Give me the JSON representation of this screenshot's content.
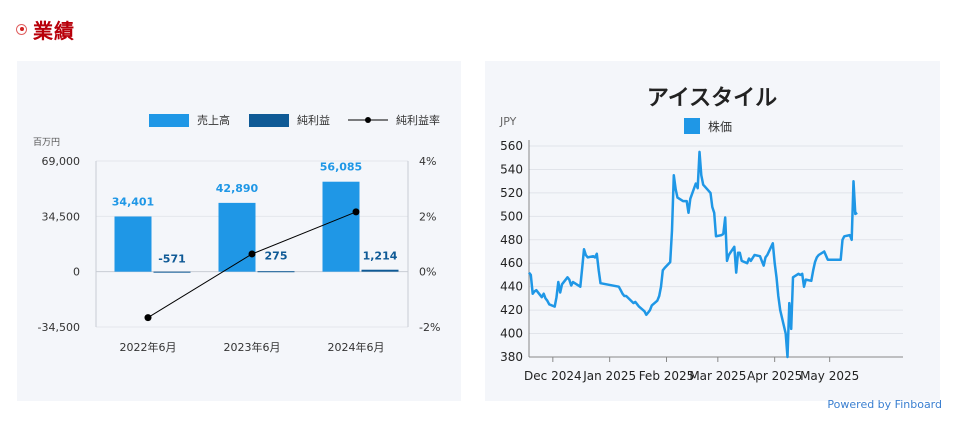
{
  "section": {
    "title": "業績"
  },
  "colors": {
    "sales": "#1f97e6",
    "net_income": "#0f5a96",
    "margin_line": "#000000",
    "stock_line": "#1f97e6",
    "header_red": "#b8000a"
  },
  "chart_data": [
    {
      "type": "bar",
      "unit_label": "百万円",
      "categories": [
        "2022年6月",
        "2023年6月",
        "2024年6月"
      ],
      "series": [
        {
          "name": "売上高",
          "type": "bar",
          "axis": "left",
          "values": [
            34401,
            42890,
            56085
          ],
          "labels": [
            "34,401",
            "42,890",
            "56,085"
          ]
        },
        {
          "name": "純利益",
          "type": "bar",
          "axis": "left",
          "values": [
            -571,
            275,
            1214
          ],
          "labels": [
            "-571",
            "275",
            "1,214"
          ]
        },
        {
          "name": "純利益率",
          "type": "line",
          "axis": "right",
          "values": [
            -1.66,
            0.64,
            2.16
          ]
        }
      ],
      "left_axis": {
        "ylim": [
          -34500,
          69000
        ],
        "ticks": [
          69000,
          34500,
          0,
          -34500
        ],
        "tick_labels": [
          "69,000",
          "34,500",
          "0",
          "-34,500"
        ]
      },
      "right_axis": {
        "ylim": [
          -2,
          4
        ],
        "ticks": [
          4,
          2,
          0,
          -2
        ],
        "tick_labels": [
          "4%",
          "2%",
          "0%",
          "-2%"
        ]
      },
      "legend_position": "top-right"
    },
    {
      "type": "line",
      "title": "アイスタイル",
      "ylabel": "JPY",
      "series_name": "株価",
      "ylim": [
        380,
        560
      ],
      "yticks": [
        380,
        400,
        420,
        440,
        460,
        480,
        500,
        520,
        540,
        560
      ],
      "xlim": [
        "2024-11-18",
        "2025-06-10"
      ],
      "xticks": [
        {
          "label": "Dec 2024",
          "date": "2024-12-01"
        },
        {
          "label": "Jan 2025",
          "date": "2025-01-01"
        },
        {
          "label": "Feb 2025",
          "date": "2025-02-01"
        },
        {
          "label": "Mar 2025",
          "date": "2025-03-01"
        },
        {
          "label": "Apr 2025",
          "date": "2025-04-01"
        },
        {
          "label": "May 2025",
          "date": "2025-05-01"
        }
      ],
      "points": [
        [
          "2024-11-18",
          452
        ],
        [
          "2024-11-19",
          450
        ],
        [
          "2024-11-20",
          434
        ],
        [
          "2024-11-21",
          436
        ],
        [
          "2024-11-22",
          437
        ],
        [
          "2024-11-25",
          431
        ],
        [
          "2024-11-26",
          434
        ],
        [
          "2024-11-27",
          430
        ],
        [
          "2024-11-28",
          428
        ],
        [
          "2024-11-29",
          425
        ],
        [
          "2024-12-02",
          423
        ],
        [
          "2024-12-03",
          431
        ],
        [
          "2024-12-04",
          444
        ],
        [
          "2024-12-05",
          435
        ],
        [
          "2024-12-06",
          442
        ],
        [
          "2024-12-09",
          448
        ],
        [
          "2024-12-10",
          446
        ],
        [
          "2024-12-11",
          441
        ],
        [
          "2024-12-12",
          444
        ],
        [
          "2024-12-13",
          443
        ],
        [
          "2024-12-16",
          440
        ],
        [
          "2024-12-17",
          456
        ],
        [
          "2024-12-18",
          472
        ],
        [
          "2024-12-19",
          467
        ],
        [
          "2024-12-20",
          465
        ],
        [
          "2024-12-23",
          466
        ],
        [
          "2024-12-24",
          465
        ],
        [
          "2024-12-25",
          468
        ],
        [
          "2024-12-26",
          454
        ],
        [
          "2024-12-27",
          443
        ],
        [
          "2025-01-06",
          440
        ],
        [
          "2025-01-07",
          437
        ],
        [
          "2025-01-08",
          434
        ],
        [
          "2025-01-09",
          432
        ],
        [
          "2025-01-10",
          432
        ],
        [
          "2025-01-14",
          426
        ],
        [
          "2025-01-15",
          427
        ],
        [
          "2025-01-16",
          425
        ],
        [
          "2025-01-17",
          423
        ],
        [
          "2025-01-20",
          419
        ],
        [
          "2025-01-21",
          416
        ],
        [
          "2025-01-22",
          418
        ],
        [
          "2025-01-23",
          420
        ],
        [
          "2025-01-24",
          424
        ],
        [
          "2025-01-27",
          428
        ],
        [
          "2025-01-28",
          432
        ],
        [
          "2025-01-29",
          440
        ],
        [
          "2025-01-30",
          454
        ],
        [
          "2025-01-31",
          456
        ],
        [
          "2025-02-03",
          461
        ],
        [
          "2025-02-04",
          488
        ],
        [
          "2025-02-05",
          535
        ],
        [
          "2025-02-06",
          523
        ],
        [
          "2025-02-07",
          516
        ],
        [
          "2025-02-10",
          513
        ],
        [
          "2025-02-12",
          513
        ],
        [
          "2025-02-13",
          503
        ],
        [
          "2025-02-14",
          515
        ],
        [
          "2025-02-17",
          528
        ],
        [
          "2025-02-18",
          524
        ],
        [
          "2025-02-19",
          555
        ],
        [
          "2025-02-20",
          535
        ],
        [
          "2025-02-21",
          527
        ],
        [
          "2025-02-25",
          520
        ],
        [
          "2025-02-26",
          508
        ],
        [
          "2025-02-27",
          503
        ],
        [
          "2025-02-28",
          483
        ],
        [
          "2025-03-03",
          484
        ],
        [
          "2025-03-04",
          485
        ],
        [
          "2025-03-05",
          499
        ],
        [
          "2025-03-06",
          462
        ],
        [
          "2025-03-07",
          467
        ],
        [
          "2025-03-10",
          474
        ],
        [
          "2025-03-11",
          452
        ],
        [
          "2025-03-12",
          469
        ],
        [
          "2025-03-13",
          469
        ],
        [
          "2025-03-14",
          462
        ],
        [
          "2025-03-17",
          460
        ],
        [
          "2025-03-18",
          464
        ],
        [
          "2025-03-19",
          462
        ],
        [
          "2025-03-21",
          467
        ],
        [
          "2025-03-24",
          466
        ],
        [
          "2025-03-25",
          462
        ],
        [
          "2025-03-26",
          458
        ],
        [
          "2025-03-27",
          465
        ],
        [
          "2025-03-28",
          467
        ],
        [
          "2025-03-31",
          477
        ],
        [
          "2025-04-01",
          460
        ],
        [
          "2025-04-02",
          448
        ],
        [
          "2025-04-03",
          432
        ],
        [
          "2025-04-04",
          420
        ],
        [
          "2025-04-07",
          400
        ],
        [
          "2025-04-08",
          380
        ],
        [
          "2025-04-09",
          426
        ],
        [
          "2025-04-10",
          404
        ],
        [
          "2025-04-11",
          448
        ],
        [
          "2025-04-14",
          451
        ],
        [
          "2025-04-15",
          450
        ],
        [
          "2025-04-16",
          451
        ],
        [
          "2025-04-17",
          440
        ],
        [
          "2025-04-18",
          446
        ],
        [
          "2025-04-21",
          445
        ],
        [
          "2025-04-22",
          454
        ],
        [
          "2025-04-23",
          461
        ],
        [
          "2025-04-24",
          465
        ],
        [
          "2025-04-25",
          467
        ],
        [
          "2025-04-28",
          470
        ],
        [
          "2025-04-30",
          463
        ],
        [
          "2025-05-01",
          463
        ],
        [
          "2025-05-02",
          463
        ],
        [
          "2025-05-07",
          463
        ],
        [
          "2025-05-08",
          480
        ],
        [
          "2025-05-09",
          483
        ],
        [
          "2025-05-12",
          484
        ],
        [
          "2025-05-13",
          480
        ],
        [
          "2025-05-14",
          530
        ],
        [
          "2025-05-15",
          502
        ],
        [
          "2025-05-16",
          503
        ]
      ]
    }
  ],
  "footer": {
    "powered_by": "Powered by Finboard"
  }
}
